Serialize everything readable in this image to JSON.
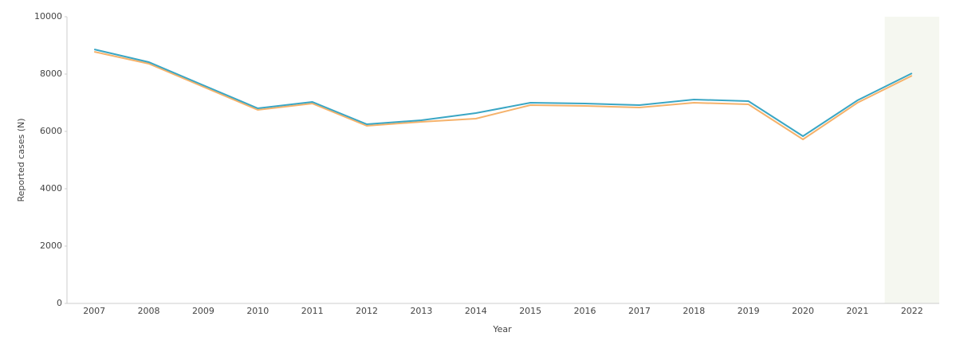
{
  "chart_data": {
    "type": "line",
    "x_label": "Year",
    "y_label": "Reported cases (N)",
    "categories": [
      "2007",
      "2008",
      "2009",
      "2010",
      "2011",
      "2012",
      "2013",
      "2014",
      "2015",
      "2016",
      "2017",
      "2018",
      "2019",
      "2020",
      "2021",
      "2022"
    ],
    "series": [
      {
        "color": "#f5b26b",
        "values": [
          8778,
          8361,
          7556,
          6750,
          6972,
          6194,
          6333,
          6444,
          6917,
          6889,
          6833,
          7000,
          6944,
          5722,
          7000,
          7944
        ]
      },
      {
        "color": "#3aa6c4",
        "values": [
          8861,
          8417,
          7611,
          6806,
          7028,
          6250,
          6389,
          6639,
          7000,
          6972,
          6917,
          7111,
          7056,
          5833,
          7083,
          8028
        ]
      }
    ],
    "highlight": "2022",
    "highlight_color": "#f5f7f0",
    "ylim": [
      0,
      10000
    ],
    "yticks": [
      0,
      2000,
      4000,
      6000,
      8000,
      10000
    ],
    "grid": false
  }
}
